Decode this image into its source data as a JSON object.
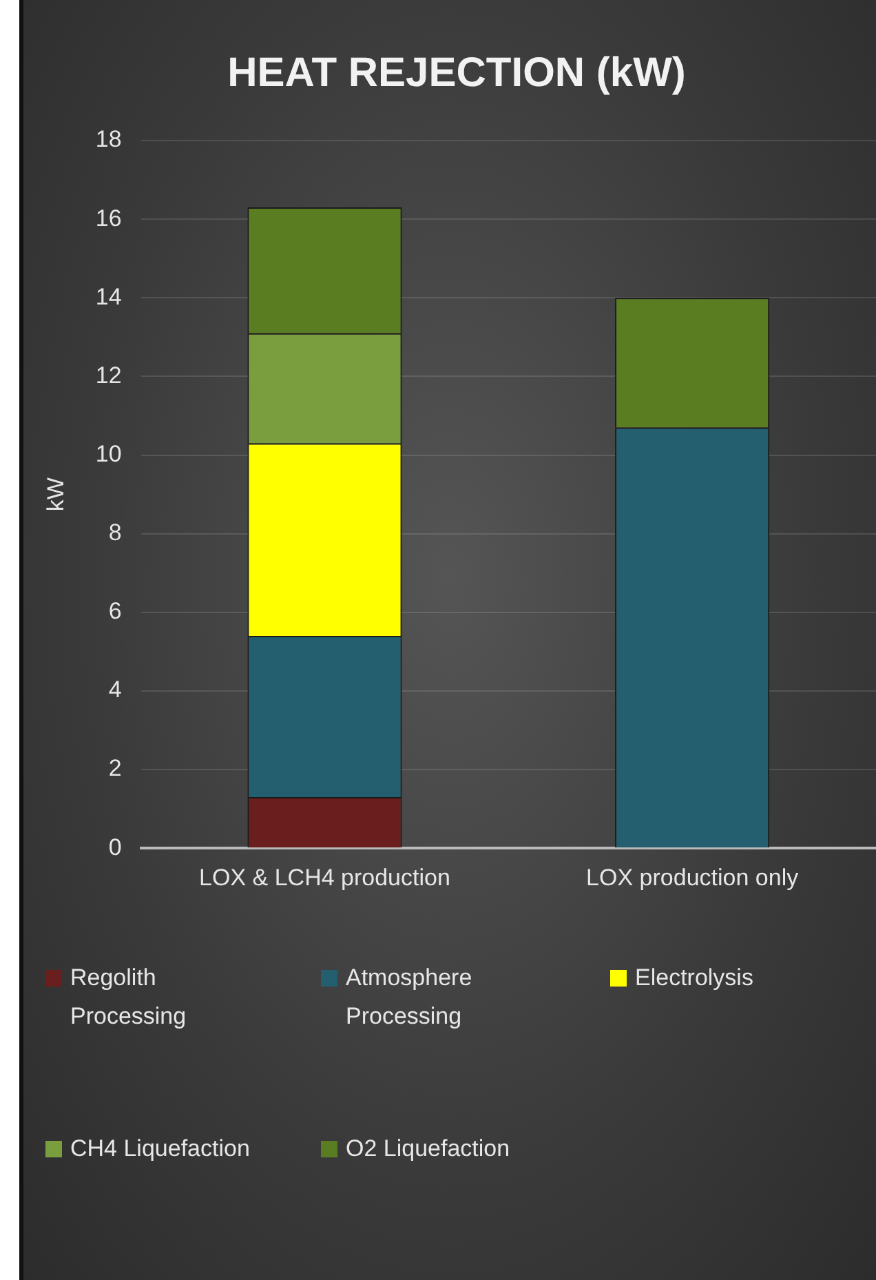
{
  "chart_data": {
    "type": "bar",
    "title": "HEAT REJECTION (kW)",
    "ylabel": "kW",
    "categories": [
      "LOX & LCH4 production",
      "LOX production only"
    ],
    "stacked": true,
    "ylim": [
      0,
      18
    ],
    "yticks": [
      0,
      2,
      4,
      6,
      8,
      10,
      12,
      14,
      16,
      18
    ],
    "grid": "y",
    "legend": "bottom",
    "series": [
      {
        "name": "Regolith Processing",
        "color": "#6b1e1e",
        "values": [
          1.3,
          null
        ]
      },
      {
        "name": "Atmosphere Processing",
        "color": "#245f70",
        "values": [
          4.1,
          10.7
        ]
      },
      {
        "name": "Electrolysis",
        "color": "#ffff00",
        "values": [
          4.9,
          null
        ]
      },
      {
        "name": "CH4 Liquefaction",
        "color": "#7a9e3e",
        "values": [
          2.8,
          null
        ]
      },
      {
        "name": "O2 Liquefaction",
        "color": "#5a7d22",
        "values": [
          3.2,
          3.3
        ]
      }
    ]
  }
}
